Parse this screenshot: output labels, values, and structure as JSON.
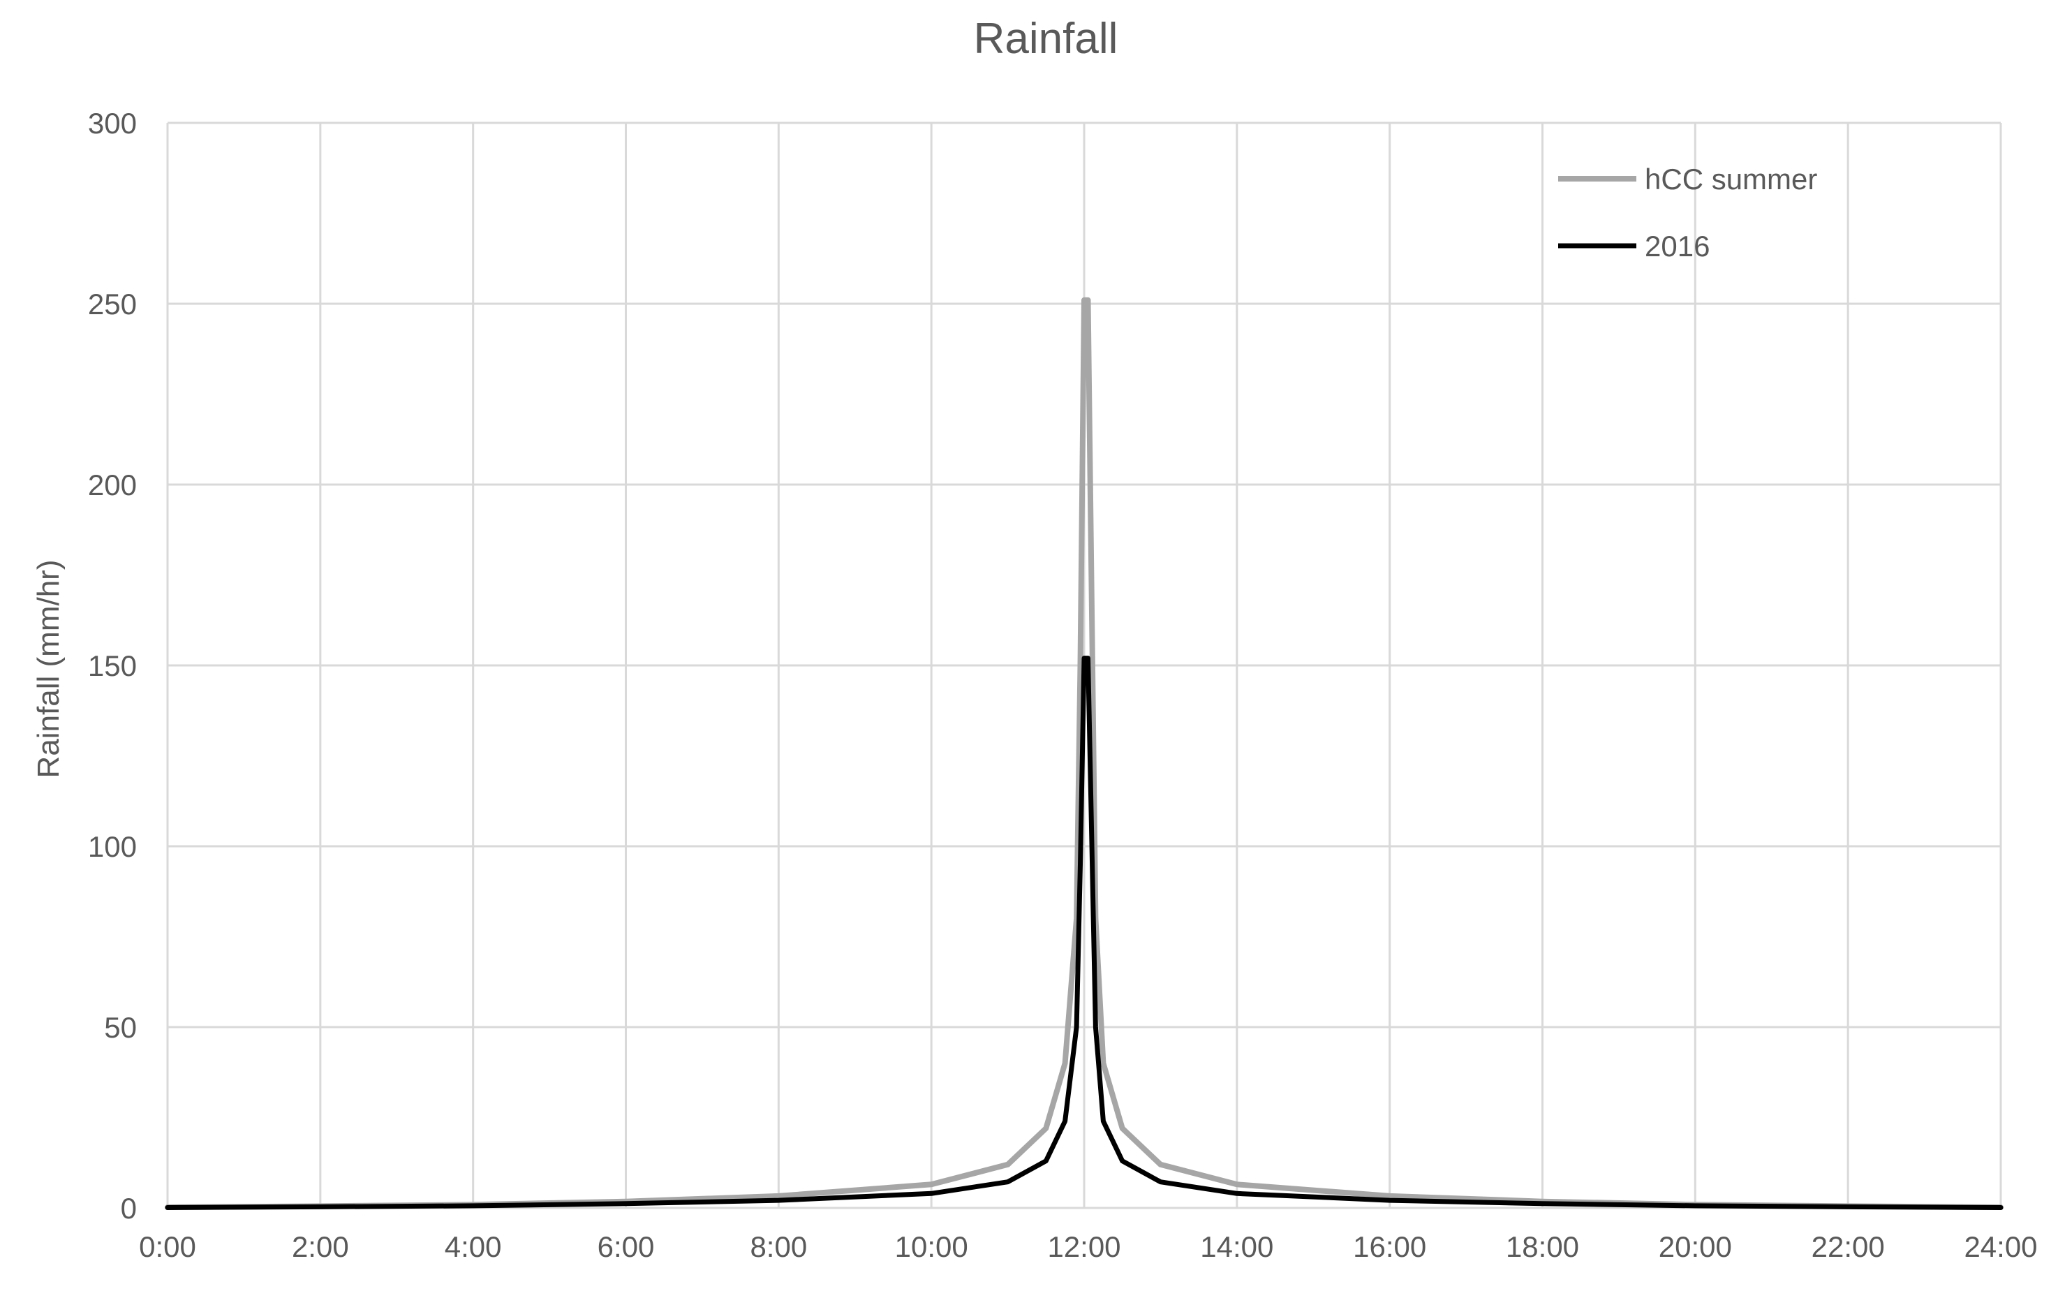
{
  "chart_data": {
    "type": "line",
    "title": "Rainfall",
    "xlabel": "",
    "ylabel": "Rainfall (mm/hr)",
    "xlim_hours": [
      0,
      24
    ],
    "ylim": [
      0,
      300
    ],
    "x_ticks": [
      "0:00",
      "2:00",
      "4:00",
      "6:00",
      "8:00",
      "10:00",
      "12:00",
      "14:00",
      "16:00",
      "18:00",
      "20:00",
      "22:00",
      "24:00"
    ],
    "y_ticks": [
      0,
      50,
      100,
      150,
      200,
      250,
      300
    ],
    "grid": true,
    "legend_position": "top-right",
    "x_units": "hours",
    "series": [
      {
        "name": "hCC summer",
        "color": "#a6a6a6",
        "x": [
          0,
          2,
          4,
          6,
          8,
          10,
          11,
          11.5,
          11.75,
          11.9,
          11.95,
          12.0,
          12.05,
          12.15,
          12.25,
          12.5,
          13,
          14,
          16,
          18,
          20,
          22,
          24
        ],
        "y": [
          0.2,
          0.5,
          0.9,
          1.8,
          3.3,
          6.5,
          12,
          22,
          40,
          80,
          150,
          251,
          251,
          80,
          40,
          22,
          12,
          6.5,
          3.3,
          1.8,
          0.9,
          0.5,
          0.2
        ]
      },
      {
        "name": "2016",
        "color": "#000000",
        "x": [
          0,
          2,
          4,
          6,
          8,
          10,
          11,
          11.5,
          11.75,
          11.9,
          11.95,
          12.0,
          12.05,
          12.15,
          12.25,
          12.5,
          13,
          14,
          16,
          18,
          20,
          22,
          24
        ],
        "y": [
          0.1,
          0.3,
          0.6,
          1.2,
          2.1,
          4.0,
          7.2,
          13,
          24,
          50,
          95,
          152,
          152,
          50,
          24,
          13,
          7.2,
          4.0,
          2.1,
          1.2,
          0.6,
          0.3,
          0.1
        ]
      }
    ]
  }
}
